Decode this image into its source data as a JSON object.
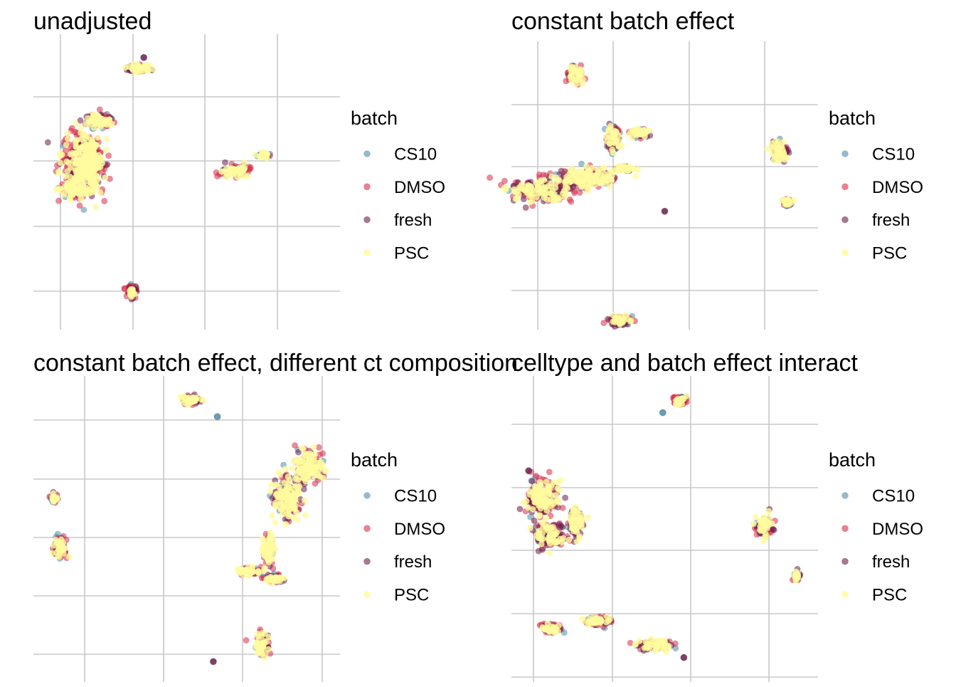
{
  "legend": {
    "title": "batch",
    "entries": [
      {
        "label": "CS10",
        "color": "#4F8EA8"
      },
      {
        "label": "DMSO",
        "color": "#D7304B"
      },
      {
        "label": "fresh",
        "color": "#6B1F4A"
      },
      {
        "label": "PSC",
        "color": "#FFFB9F"
      }
    ]
  },
  "chart_data": [
    {
      "type": "scatter",
      "title": "unadjusted",
      "xlabel": "",
      "ylabel": "",
      "grid": true,
      "legend_position": "right",
      "series_names": [
        "CS10",
        "DMSO",
        "fresh",
        "PSC"
      ],
      "clusters": [
        {
          "cx": 2.4,
          "cy": 8.4,
          "rx": 0.26,
          "ry": 0.12,
          "w": [
            0.15,
            0.25,
            0.25,
            0.35
          ]
        },
        {
          "cx": 1.55,
          "cy": 6.7,
          "rx": 0.3,
          "ry": 0.18,
          "w": [
            0.2,
            0.3,
            0.2,
            0.3
          ]
        },
        {
          "cx": 1.1,
          "cy": 5.4,
          "rx": 0.42,
          "ry": 0.9,
          "w": [
            0.05,
            0.55,
            0.1,
            0.3
          ]
        },
        {
          "cx": 0.9,
          "cy": 4.5,
          "rx": 0.28,
          "ry": 0.22,
          "w": [
            0.05,
            0.4,
            0.1,
            0.45
          ]
        },
        {
          "cx": 1.25,
          "cy": 5.3,
          "rx": 0.22,
          "ry": 0.7,
          "w": [
            0.1,
            0.1,
            0.05,
            0.75
          ]
        },
        {
          "cx": 4.6,
          "cy": 5.1,
          "rx": 0.32,
          "ry": 0.15,
          "w": [
            0.1,
            0.3,
            0.3,
            0.3
          ]
        },
        {
          "cx": 5.25,
          "cy": 5.6,
          "rx": 0.12,
          "ry": 0.07,
          "w": [
            0.3,
            0.1,
            0.1,
            0.5
          ]
        },
        {
          "cx": 2.25,
          "cy": 1.2,
          "rx": 0.1,
          "ry": 0.18,
          "w": [
            0.2,
            0.3,
            0.2,
            0.3
          ]
        }
      ],
      "outliers": [
        {
          "x": 2.52,
          "y": 8.75,
          "group": "fresh"
        }
      ]
    },
    {
      "type": "scatter",
      "title": "constant batch effect",
      "xlabel": "",
      "ylabel": "",
      "grid": true,
      "legend_position": "right",
      "series_names": [
        "CS10",
        "DMSO",
        "fresh",
        "PSC"
      ],
      "clusters": [
        {
          "cx": 1.25,
          "cy": 8.4,
          "rx": 0.13,
          "ry": 0.25,
          "w": [
            0.1,
            0.3,
            0.2,
            0.4
          ]
        },
        {
          "cx": 2.0,
          "cy": 6.3,
          "rx": 0.12,
          "ry": 0.35,
          "w": [
            0.2,
            0.2,
            0.2,
            0.4
          ]
        },
        {
          "cx": 2.5,
          "cy": 6.5,
          "rx": 0.14,
          "ry": 0.14,
          "w": [
            0.3,
            0.2,
            0.1,
            0.4
          ]
        },
        {
          "cx": 0.6,
          "cy": 4.6,
          "rx": 0.55,
          "ry": 0.35,
          "w": [
            0.05,
            0.35,
            0.2,
            0.4
          ]
        },
        {
          "cx": 1.45,
          "cy": 5.0,
          "rx": 0.5,
          "ry": 0.3,
          "w": [
            0.1,
            0.2,
            0.15,
            0.55
          ]
        },
        {
          "cx": 2.2,
          "cy": 5.3,
          "rx": 0.15,
          "ry": 0.08,
          "w": [
            0.2,
            0.1,
            0.1,
            0.6
          ]
        },
        {
          "cx": 5.25,
          "cy": 5.9,
          "rx": 0.14,
          "ry": 0.3,
          "w": [
            0.2,
            0.2,
            0.2,
            0.4
          ]
        },
        {
          "cx": 5.4,
          "cy": 4.2,
          "rx": 0.06,
          "ry": 0.1,
          "w": [
            0.3,
            0.1,
            0.2,
            0.4
          ]
        },
        {
          "cx": 2.15,
          "cy": 0.3,
          "rx": 0.2,
          "ry": 0.15,
          "w": [
            0.15,
            0.35,
            0.2,
            0.3
          ]
        }
      ],
      "outliers": [
        {
          "x": 3.0,
          "y": 3.9,
          "group": "fresh"
        }
      ]
    },
    {
      "type": "scatter",
      "title": "constant batch effect, different ct composition",
      "xlabel": "",
      "ylabel": "",
      "grid": true,
      "legend_position": "right",
      "series_names": [
        "CS10",
        "DMSO",
        "fresh",
        "PSC"
      ],
      "clusters": [
        {
          "cx": 3.85,
          "cy": 8.3,
          "rx": 0.2,
          "ry": 0.1,
          "w": [
            0.1,
            0.3,
            0.2,
            0.4
          ]
        },
        {
          "cx": 0.5,
          "cy": 5.4,
          "rx": 0.07,
          "ry": 0.1,
          "w": [
            0.4,
            0.1,
            0.1,
            0.4
          ]
        },
        {
          "cx": 0.65,
          "cy": 4.0,
          "rx": 0.15,
          "ry": 0.28,
          "w": [
            0.2,
            0.3,
            0.2,
            0.3
          ]
        },
        {
          "cx": 6.7,
          "cy": 6.3,
          "rx": 0.35,
          "ry": 0.4,
          "w": [
            0.1,
            0.3,
            0.1,
            0.5
          ]
        },
        {
          "cx": 6.2,
          "cy": 5.4,
          "rx": 0.3,
          "ry": 0.5,
          "w": [
            0.05,
            0.25,
            0.2,
            0.5
          ]
        },
        {
          "cx": 5.75,
          "cy": 3.9,
          "rx": 0.12,
          "ry": 0.4,
          "w": [
            0.15,
            0.15,
            0.1,
            0.6
          ]
        },
        {
          "cx": 5.3,
          "cy": 3.25,
          "rx": 0.25,
          "ry": 0.1,
          "w": [
            0.1,
            0.3,
            0.1,
            0.5
          ]
        },
        {
          "cx": 5.9,
          "cy": 3.05,
          "rx": 0.22,
          "ry": 0.1,
          "w": [
            0.1,
            0.35,
            0.15,
            0.4
          ]
        },
        {
          "cx": 5.6,
          "cy": 1.1,
          "rx": 0.15,
          "ry": 0.3,
          "w": [
            0.1,
            0.3,
            0.2,
            0.4
          ]
        }
      ],
      "outliers": [
        {
          "x": 4.5,
          "y": 7.8,
          "group": "CS10"
        },
        {
          "x": 4.4,
          "y": 0.6,
          "group": "fresh"
        }
      ]
    },
    {
      "type": "scatter",
      "title": "celltype and batch effect interact",
      "xlabel": "",
      "ylabel": "",
      "grid": true,
      "legend_position": "right",
      "series_names": [
        "CS10",
        "DMSO",
        "fresh",
        "PSC"
      ],
      "clusters": [
        {
          "cx": 4.4,
          "cy": 9.2,
          "rx": 0.15,
          "ry": 0.12,
          "w": [
            0.15,
            0.35,
            0.1,
            0.4
          ]
        },
        {
          "cx": 0.8,
          "cy": 6.0,
          "rx": 0.35,
          "ry": 0.55,
          "w": [
            0.1,
            0.3,
            0.2,
            0.4
          ]
        },
        {
          "cx": 1.0,
          "cy": 4.8,
          "rx": 0.35,
          "ry": 0.4,
          "w": [
            0.1,
            0.3,
            0.3,
            0.3
          ]
        },
        {
          "cx": 1.7,
          "cy": 5.2,
          "rx": 0.14,
          "ry": 0.4,
          "w": [
            0.05,
            0.1,
            0.5,
            0.35
          ]
        },
        {
          "cx": 6.6,
          "cy": 5.1,
          "rx": 0.2,
          "ry": 0.3,
          "w": [
            0.15,
            0.25,
            0.2,
            0.4
          ]
        },
        {
          "cx": 7.45,
          "cy": 3.45,
          "rx": 0.06,
          "ry": 0.12,
          "w": [
            0.3,
            0.1,
            0.2,
            0.4
          ]
        },
        {
          "cx": 1.05,
          "cy": 1.75,
          "rx": 0.25,
          "ry": 0.12,
          "w": [
            0.25,
            0.3,
            0.15,
            0.3
          ]
        },
        {
          "cx": 2.25,
          "cy": 2.0,
          "rx": 0.3,
          "ry": 0.14,
          "w": [
            0.2,
            0.3,
            0.15,
            0.35
          ]
        },
        {
          "cx": 3.75,
          "cy": 1.2,
          "rx": 0.4,
          "ry": 0.15,
          "w": [
            0.2,
            0.25,
            0.2,
            0.35
          ]
        }
      ],
      "outliers": [
        {
          "x": 3.95,
          "y": 8.8,
          "group": "CS10"
        },
        {
          "x": 0.45,
          "y": 6.9,
          "group": "fresh"
        },
        {
          "x": 4.5,
          "y": 0.8,
          "group": "fresh"
        }
      ]
    }
  ]
}
